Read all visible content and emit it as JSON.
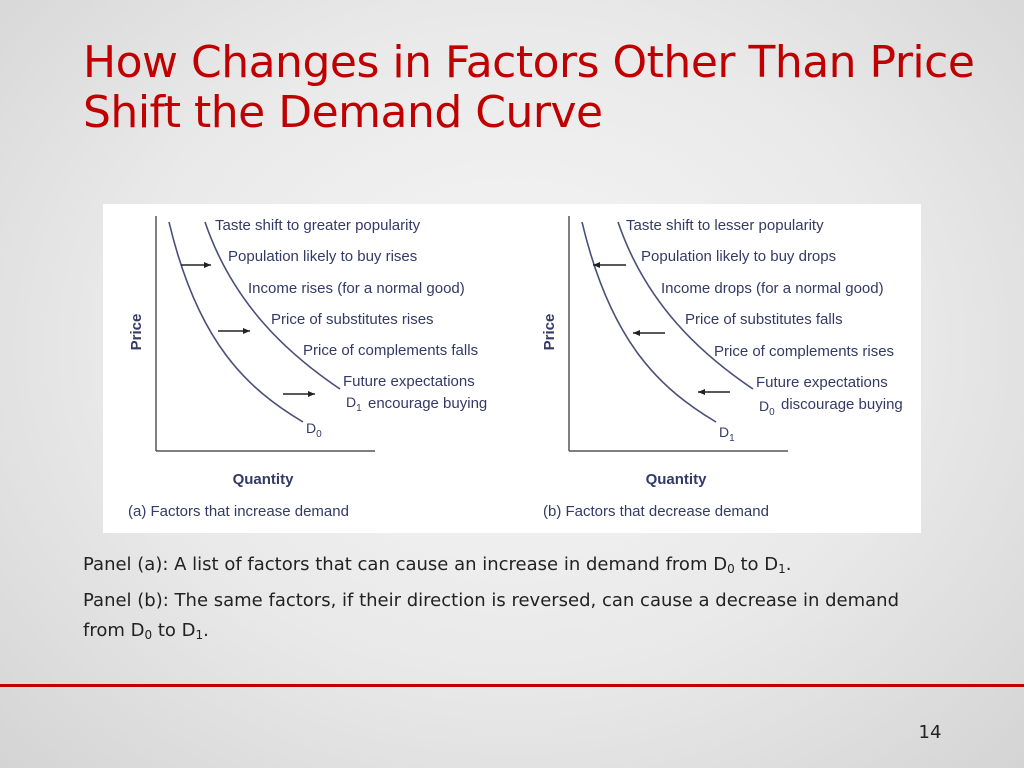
{
  "slide": {
    "title_line1": "How Changes in Factors Other Than Price",
    "title_line2": "Shift the Demand Curve",
    "page_number": "14"
  },
  "figure": {
    "panel_a": {
      "y_axis_label": "Price",
      "x_axis_label": "Quantity",
      "caption": "(a) Factors that increase demand",
      "factors": [
        "Taste shift to greater popularity",
        "Population likely to buy rises",
        "Income rises (for a normal good)",
        "Price of substitutes rises",
        "Price of complements falls",
        "Future expectations",
        "encourage buying"
      ],
      "curve_inner": {
        "letter": "D",
        "sub": "0"
      },
      "curve_outer": {
        "letter": "D",
        "sub": "1"
      },
      "arrow_direction": "right"
    },
    "panel_b": {
      "y_axis_label": "Price",
      "x_axis_label": "Quantity",
      "caption": "(b) Factors that decrease demand",
      "factors": [
        "Taste shift to lesser popularity",
        "Population likely to buy drops",
        "Income drops (for a normal good)",
        "Price of substitutes falls",
        "Price of complements rises",
        "Future expectations",
        "discourage buying"
      ],
      "curve_inner": {
        "letter": "D",
        "sub": "1"
      },
      "curve_outer": {
        "letter": "D",
        "sub": "0"
      },
      "arrow_direction": "left"
    },
    "colors": {
      "curve": "#4a4f7a",
      "text": "#333a66",
      "axis": "#555555"
    }
  },
  "notes": {
    "panel_a": {
      "prefix": "Panel (a):  A list of factors that can cause an increase in demand from ",
      "d_from": "D",
      "sub_from": "0",
      "mid": " to ",
      "d_to": "D",
      "sub_to": "1",
      "end": "."
    },
    "panel_b": {
      "prefix": "Panel (b):  The same factors, if their direction is reversed, can cause a decrease in demand from ",
      "d_from": "D",
      "sub_from": "0",
      "mid": " to ",
      "d_to": "D",
      "sub_to": "1",
      "end": "."
    }
  }
}
